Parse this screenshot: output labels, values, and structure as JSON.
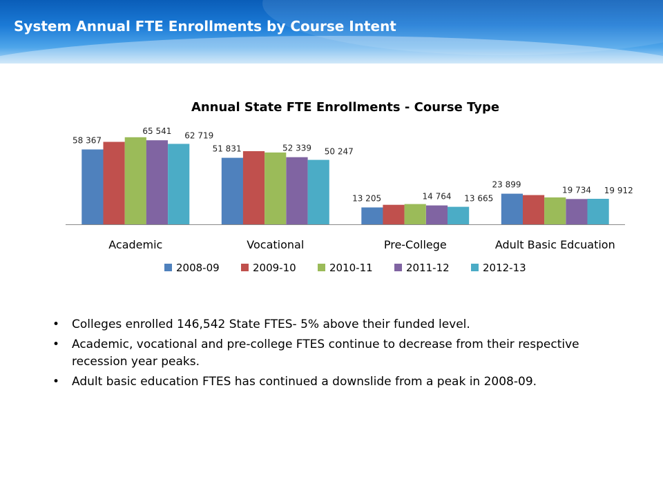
{
  "header": {
    "title": "System Annual FTE Enrollments by Course Intent"
  },
  "chart_data": {
    "type": "bar",
    "title": "Annual State FTE Enrollments - Course Type",
    "xlabel": "",
    "ylabel": "",
    "categories": [
      "Academic",
      "Vocational",
      "Pre-College",
      "Adult Basic Edcuation"
    ],
    "series": [
      {
        "name": "2008-09",
        "color": "#4f81bd",
        "values": [
          58367,
          51831,
          13205,
          23899
        ]
      },
      {
        "name": "2009-10",
        "color": "#c0504d",
        "values": [
          64300,
          57000,
          15200,
          22800
        ]
      },
      {
        "name": "2010-11",
        "color": "#9bbb59",
        "values": [
          67900,
          56000,
          15800,
          21000
        ]
      },
      {
        "name": "2011-12",
        "color": "#8064a2",
        "values": [
          65541,
          52339,
          14764,
          19734
        ]
      },
      {
        "name": "2012-13",
        "color": "#4bacc6",
        "values": [
          62719,
          50247,
          13665,
          19912
        ]
      }
    ],
    "data_labels": [
      {
        "category": 0,
        "series": 0,
        "text": "58 367"
      },
      {
        "category": 0,
        "series": 3,
        "text": "65 541"
      },
      {
        "category": 0,
        "series": 4,
        "text": "62 719"
      },
      {
        "category": 1,
        "series": 0,
        "text": "51 831"
      },
      {
        "category": 1,
        "series": 3,
        "text": "52 339"
      },
      {
        "category": 1,
        "series": 4,
        "text": "50 247"
      },
      {
        "category": 2,
        "series": 0,
        "text": "13 205"
      },
      {
        "category": 2,
        "series": 3,
        "text": "14 764"
      },
      {
        "category": 2,
        "series": 4,
        "text": "13 665"
      },
      {
        "category": 3,
        "series": 0,
        "text": "23 899"
      },
      {
        "category": 3,
        "series": 3,
        "text": "19 734"
      },
      {
        "category": 3,
        "series": 4,
        "text": "19 912"
      }
    ],
    "ylim": [
      0,
      78000
    ],
    "grid": false,
    "legend_position": "bottom"
  },
  "bullets": [
    "Colleges enrolled 146,542 State FTES- 5% above their funded level.",
    "Academic, vocational and pre-college FTES  continue to decrease from their respective recession year peaks.",
    "Adult basic education FTES has continued a downslide from a peak in 2008-09."
  ]
}
